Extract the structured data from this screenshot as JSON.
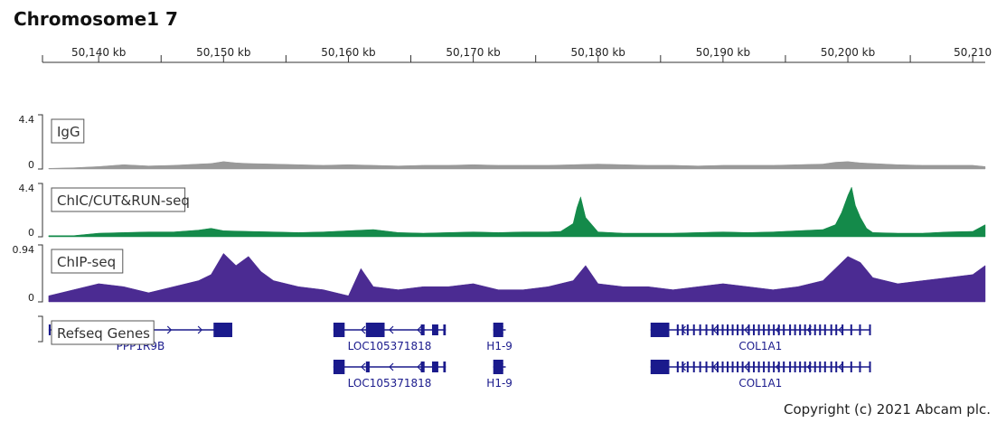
{
  "title": "Chromosome1 7",
  "copyright": "Copyright (c) 2021 Abcam plc.",
  "chart_data": {
    "type": "area",
    "x_unit": "kb",
    "xlim": [
      50135.5,
      50211
    ],
    "x_ticks": [
      {
        "value": 50140,
        "label": "50,140 kb"
      },
      {
        "value": 50150,
        "label": "50,150 kb"
      },
      {
        "value": 50160,
        "label": "50,160 kb"
      },
      {
        "value": 50170,
        "label": "50,170 kb"
      },
      {
        "value": 50180,
        "label": "50,180 kb"
      },
      {
        "value": 50190,
        "label": "50,190 kb"
      },
      {
        "value": 50200,
        "label": "50,200 kb"
      },
      {
        "value": 50210,
        "label": "50,210"
      }
    ],
    "tracks": [
      {
        "name": "IgG",
        "color": "#999999",
        "ylim": [
          0,
          4.4
        ],
        "y_tick_labels": [
          "4.4",
          "0"
        ],
        "x": [
          50136,
          50138,
          50140,
          50142,
          50144,
          50146,
          50148,
          50149,
          50150,
          50151,
          50152,
          50154,
          50156,
          50158,
          50160,
          50162,
          50164,
          50166,
          50168,
          50170,
          50172,
          50174,
          50176,
          50178,
          50180,
          50182,
          50184,
          50186,
          50188,
          50190,
          50192,
          50194,
          50196,
          50198,
          50199,
          50200,
          50201,
          50202,
          50204,
          50206,
          50208,
          50210,
          50211
        ],
        "y": [
          0.05,
          0.1,
          0.2,
          0.35,
          0.25,
          0.3,
          0.4,
          0.45,
          0.6,
          0.5,
          0.45,
          0.4,
          0.35,
          0.3,
          0.35,
          0.3,
          0.25,
          0.3,
          0.3,
          0.35,
          0.3,
          0.3,
          0.3,
          0.35,
          0.4,
          0.35,
          0.3,
          0.3,
          0.25,
          0.3,
          0.3,
          0.3,
          0.35,
          0.4,
          0.55,
          0.6,
          0.5,
          0.45,
          0.35,
          0.3,
          0.3,
          0.3,
          0.2
        ]
      },
      {
        "name": "ChIC/CUT&RUN-seq",
        "color": "#148a4a",
        "ylim": [
          0,
          4.4
        ],
        "y_tick_labels": [
          "4.4",
          "0"
        ],
        "x": [
          50136,
          50138,
          50140,
          50142,
          50144,
          50146,
          50148,
          50149,
          50150,
          50152,
          50154,
          50156,
          50158,
          50160,
          50162,
          50164,
          50166,
          50168,
          50170,
          50172,
          50174,
          50176,
          50177,
          50178,
          50178.3,
          50178.6,
          50179,
          50180,
          50182,
          50184,
          50186,
          50188,
          50190,
          50192,
          50194,
          50196,
          50198,
          50199,
          50199.5,
          50200,
          50200.3,
          50200.6,
          50201,
          50201.5,
          50202,
          50204,
          50206,
          50208,
          50210,
          50211
        ],
        "y": [
          0.1,
          0.1,
          0.3,
          0.35,
          0.4,
          0.4,
          0.55,
          0.7,
          0.5,
          0.45,
          0.4,
          0.35,
          0.4,
          0.5,
          0.6,
          0.35,
          0.3,
          0.35,
          0.4,
          0.35,
          0.4,
          0.4,
          0.45,
          1.1,
          2.4,
          3.3,
          1.6,
          0.4,
          0.3,
          0.3,
          0.3,
          0.35,
          0.4,
          0.35,
          0.4,
          0.5,
          0.6,
          1.0,
          2.0,
          3.4,
          4.1,
          2.6,
          1.6,
          0.7,
          0.35,
          0.3,
          0.3,
          0.4,
          0.45,
          1.0
        ]
      },
      {
        "name": "ChIP-seq",
        "color": "#4b2b92",
        "ylim": [
          0,
          0.94
        ],
        "y_tick_labels": [
          "0.94",
          "0"
        ],
        "x": [
          50136,
          50138,
          50140,
          50142,
          50144,
          50146,
          50148,
          50149,
          50150,
          50151,
          50152,
          50153,
          50154,
          50156,
          50158,
          50160,
          50161,
          50162,
          50164,
          50166,
          50168,
          50170,
          50172,
          50174,
          50176,
          50178,
          50179,
          50180,
          50182,
          50184,
          50186,
          50188,
          50190,
          50192,
          50194,
          50196,
          50198,
          50199,
          50200,
          50201,
          50202,
          50204,
          50206,
          50208,
          50210,
          50211
        ],
        "y": [
          0.1,
          0.2,
          0.3,
          0.25,
          0.15,
          0.25,
          0.35,
          0.45,
          0.8,
          0.6,
          0.75,
          0.5,
          0.35,
          0.25,
          0.2,
          0.1,
          0.55,
          0.25,
          0.2,
          0.25,
          0.25,
          0.3,
          0.2,
          0.2,
          0.25,
          0.35,
          0.6,
          0.3,
          0.25,
          0.25,
          0.2,
          0.25,
          0.3,
          0.25,
          0.2,
          0.25,
          0.35,
          0.55,
          0.75,
          0.65,
          0.4,
          0.3,
          0.35,
          0.4,
          0.45,
          0.6
        ]
      }
    ],
    "genes_track": {
      "name": "Refseq Genes",
      "color": "#1a1a8c",
      "genes": [
        {
          "name": "PPP1R9B",
          "strand": "+",
          "start": 50136,
          "end": 50150.7,
          "exons": [
            [
              50136,
              50136.15
            ],
            [
              50149.2,
              50150.7
            ]
          ],
          "row": 0
        },
        {
          "name": "LOC105371818",
          "strand": "-",
          "start": 50158.8,
          "end": 50167.8,
          "exons": [
            [
              50158.8,
              50159.7
            ],
            [
              50161.4,
              50162.9
            ],
            [
              50165.8,
              50166.1
            ],
            [
              50166.7,
              50167.2
            ],
            [
              50167.6,
              50167.8
            ]
          ],
          "row": 0
        },
        {
          "name": "LOC105371818",
          "strand": "-",
          "start": 50158.8,
          "end": 50167.8,
          "exons": [
            [
              50158.8,
              50159.7
            ],
            [
              50161.4,
              50161.7
            ],
            [
              50165.8,
              50166.1
            ],
            [
              50166.7,
              50167.2
            ],
            [
              50167.6,
              50167.8
            ]
          ],
          "row": 1
        },
        {
          "name": "H1-9",
          "strand": "-",
          "start": 50171.6,
          "end": 50172.6,
          "exons": [
            [
              50171.6,
              50172.4
            ]
          ],
          "row": 0
        },
        {
          "name": "H1-9",
          "strand": "-",
          "start": 50171.6,
          "end": 50172.6,
          "exons": [
            [
              50171.6,
              50172.4
            ]
          ],
          "row": 1
        },
        {
          "name": "COL1A1",
          "strand": "-",
          "start": 50184.2,
          "end": 50201.8,
          "exons": [
            [
              50184.2,
              50185.7
            ],
            [
              50186.3,
              50186.45
            ],
            [
              50186.7,
              50186.85
            ],
            [
              50187.1,
              50187.2
            ],
            [
              50187.6,
              50187.7
            ],
            [
              50188.1,
              50188.2
            ],
            [
              50188.6,
              50188.7
            ],
            [
              50189.1,
              50189.2
            ],
            [
              50189.5,
              50189.6
            ],
            [
              50189.9,
              50190.0
            ],
            [
              50190.3,
              50190.4
            ],
            [
              50190.7,
              50190.8
            ],
            [
              50191.1,
              50191.2
            ],
            [
              50191.5,
              50191.6
            ],
            [
              50192.0,
              50192.1
            ],
            [
              50192.4,
              50192.5
            ],
            [
              50192.8,
              50192.9
            ],
            [
              50193.2,
              50193.3
            ],
            [
              50193.6,
              50193.7
            ],
            [
              50194.0,
              50194.1
            ],
            [
              50194.4,
              50194.5
            ],
            [
              50194.8,
              50194.9
            ],
            [
              50195.3,
              50195.4
            ],
            [
              50195.7,
              50195.8
            ],
            [
              50196.1,
              50196.2
            ],
            [
              50196.5,
              50196.6
            ],
            [
              50196.9,
              50197.0
            ],
            [
              50197.3,
              50197.4
            ],
            [
              50197.7,
              50197.8
            ],
            [
              50198.1,
              50198.2
            ],
            [
              50198.6,
              50198.7
            ],
            [
              50199.0,
              50199.1
            ],
            [
              50199.5,
              50199.6
            ],
            [
              50200.2,
              50200.3
            ],
            [
              50200.9,
              50201.0
            ],
            [
              50201.7,
              50201.8
            ]
          ],
          "row": 0
        },
        {
          "name": "COL1A1",
          "strand": "-",
          "start": 50184.2,
          "end": 50201.8,
          "exons": [
            [
              50184.2,
              50185.7
            ],
            [
              50186.3,
              50186.45
            ],
            [
              50186.7,
              50186.85
            ],
            [
              50187.1,
              50187.2
            ],
            [
              50187.6,
              50187.7
            ],
            [
              50188.1,
              50188.2
            ],
            [
              50188.6,
              50188.7
            ],
            [
              50189.1,
              50189.2
            ],
            [
              50189.5,
              50189.6
            ],
            [
              50189.9,
              50190.0
            ],
            [
              50190.3,
              50190.4
            ],
            [
              50190.7,
              50190.8
            ],
            [
              50191.1,
              50191.2
            ],
            [
              50191.5,
              50191.6
            ],
            [
              50192.0,
              50192.1
            ],
            [
              50192.4,
              50192.5
            ],
            [
              50192.8,
              50192.9
            ],
            [
              50193.2,
              50193.3
            ],
            [
              50193.6,
              50193.7
            ],
            [
              50194.0,
              50194.1
            ],
            [
              50194.4,
              50194.5
            ],
            [
              50194.8,
              50194.9
            ],
            [
              50195.3,
              50195.4
            ],
            [
              50195.7,
              50195.8
            ],
            [
              50196.1,
              50196.2
            ],
            [
              50196.5,
              50196.6
            ],
            [
              50196.9,
              50197.0
            ],
            [
              50197.3,
              50197.4
            ],
            [
              50197.7,
              50197.8
            ],
            [
              50198.1,
              50198.2
            ],
            [
              50198.6,
              50198.7
            ],
            [
              50199.0,
              50199.1
            ],
            [
              50199.5,
              50199.6
            ],
            [
              50200.2,
              50200.3
            ],
            [
              50200.9,
              50201.0
            ],
            [
              50201.7,
              50201.8
            ]
          ],
          "row": 1
        }
      ]
    }
  }
}
